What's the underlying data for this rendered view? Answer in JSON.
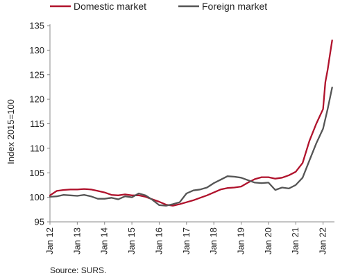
{
  "chart_data": {
    "type": "line",
    "ylabel": "Index 2015=100",
    "xlabel": "",
    "source": "Source: SURS.",
    "ylim": [
      95,
      135
    ],
    "yticks": [
      95,
      100,
      105,
      110,
      115,
      120,
      125,
      130,
      135
    ],
    "xlim": [
      "2012-01",
      "2022-06"
    ],
    "xticks": [
      "Jan 12",
      "Jan 13",
      "Jan 14",
      "Jan 15",
      "Jan 16",
      "Jan 17",
      "Jan 18",
      "Jan 19",
      "Jan 20",
      "Jan 21",
      "Jan 22"
    ],
    "grid": false,
    "legend": "top",
    "series": [
      {
        "name": "Domestic market",
        "color": "#b0122c",
        "points": [
          [
            "2012-01",
            100.4
          ],
          [
            "2012-04",
            101.3
          ],
          [
            "2012-07",
            101.5
          ],
          [
            "2012-10",
            101.6
          ],
          [
            "2013-01",
            101.6
          ],
          [
            "2013-04",
            101.7
          ],
          [
            "2013-07",
            101.6
          ],
          [
            "2013-10",
            101.3
          ],
          [
            "2014-01",
            101.0
          ],
          [
            "2014-04",
            100.5
          ],
          [
            "2014-07",
            100.4
          ],
          [
            "2014-10",
            100.6
          ],
          [
            "2015-01",
            100.4
          ],
          [
            "2015-04",
            100.4
          ],
          [
            "2015-07",
            100.1
          ],
          [
            "2015-10",
            99.6
          ],
          [
            "2016-01",
            99.1
          ],
          [
            "2016-04",
            98.5
          ],
          [
            "2016-07",
            98.3
          ],
          [
            "2016-10",
            98.6
          ],
          [
            "2017-01",
            99.0
          ],
          [
            "2017-04",
            99.4
          ],
          [
            "2017-07",
            99.9
          ],
          [
            "2017-10",
            100.4
          ],
          [
            "2018-01",
            101.0
          ],
          [
            "2018-04",
            101.6
          ],
          [
            "2018-07",
            101.9
          ],
          [
            "2018-10",
            102.0
          ],
          [
            "2019-01",
            102.2
          ],
          [
            "2019-04",
            103.0
          ],
          [
            "2019-07",
            103.7
          ],
          [
            "2019-10",
            104.1
          ],
          [
            "2020-01",
            104.1
          ],
          [
            "2020-04",
            103.8
          ],
          [
            "2020-07",
            104.0
          ],
          [
            "2020-10",
            104.5
          ],
          [
            "2021-01",
            105.2
          ],
          [
            "2021-04",
            107.0
          ],
          [
            "2021-07",
            111.5
          ],
          [
            "2021-10",
            115.0
          ],
          [
            "2022-01",
            118.0
          ],
          [
            "2022-02",
            123.5
          ],
          [
            "2022-03",
            126.0
          ],
          [
            "2022-04",
            129.0
          ],
          [
            "2022-05",
            132.0
          ]
        ]
      },
      {
        "name": "Foreign market",
        "color": "#555555",
        "points": [
          [
            "2012-01",
            100.1
          ],
          [
            "2012-04",
            100.2
          ],
          [
            "2012-07",
            100.5
          ],
          [
            "2012-10",
            100.4
          ],
          [
            "2013-01",
            100.3
          ],
          [
            "2013-04",
            100.5
          ],
          [
            "2013-07",
            100.2
          ],
          [
            "2013-10",
            99.7
          ],
          [
            "2014-01",
            99.7
          ],
          [
            "2014-04",
            99.9
          ],
          [
            "2014-07",
            99.6
          ],
          [
            "2014-10",
            100.2
          ],
          [
            "2015-01",
            100.0
          ],
          [
            "2015-04",
            100.8
          ],
          [
            "2015-07",
            100.4
          ],
          [
            "2015-10",
            99.5
          ],
          [
            "2016-01",
            98.4
          ],
          [
            "2016-04",
            98.3
          ],
          [
            "2016-07",
            98.6
          ],
          [
            "2016-10",
            99.0
          ],
          [
            "2017-01",
            100.8
          ],
          [
            "2017-04",
            101.4
          ],
          [
            "2017-07",
            101.6
          ],
          [
            "2017-10",
            102.0
          ],
          [
            "2018-01",
            102.9
          ],
          [
            "2018-04",
            103.6
          ],
          [
            "2018-07",
            104.3
          ],
          [
            "2018-10",
            104.2
          ],
          [
            "2019-01",
            104.0
          ],
          [
            "2019-04",
            103.5
          ],
          [
            "2019-07",
            103.0
          ],
          [
            "2019-10",
            102.9
          ],
          [
            "2020-01",
            103.0
          ],
          [
            "2020-04",
            101.5
          ],
          [
            "2020-07",
            102.0
          ],
          [
            "2020-10",
            101.8
          ],
          [
            "2021-01",
            102.5
          ],
          [
            "2021-04",
            104.0
          ],
          [
            "2021-07",
            107.5
          ],
          [
            "2021-10",
            111.0
          ],
          [
            "2022-01",
            114.0
          ],
          [
            "2022-03",
            118.0
          ],
          [
            "2022-05",
            122.4
          ]
        ]
      }
    ]
  }
}
